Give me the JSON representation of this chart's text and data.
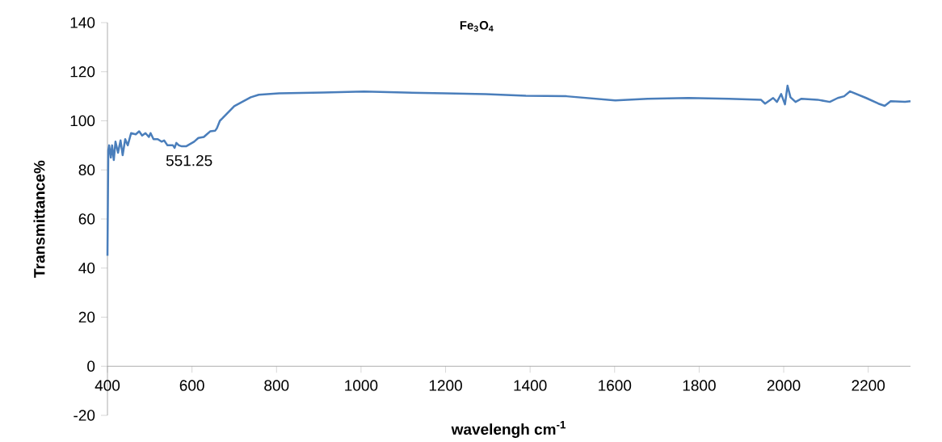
{
  "chart_data": {
    "type": "line",
    "title": "Fe$_{3}$O$_{4}$",
    "xlabel": "wavelengh cm$^{-1}$",
    "ylabel": "Transmittance%",
    "x": [
      400,
      402,
      404,
      408,
      411,
      415,
      419,
      425,
      431,
      436,
      442,
      448,
      456,
      467,
      475,
      482,
      490,
      498,
      502,
      509,
      519,
      528,
      534,
      542,
      548,
      555,
      559,
      563,
      569,
      576,
      586,
      595,
      605,
      615,
      628,
      643,
      655,
      659,
      666,
      672,
      700,
      739,
      758,
      806,
      911,
      1007,
      1103,
      1199,
      1295,
      1390,
      1486,
      1601,
      1678,
      1774,
      1870,
      1946,
      1956,
      1975,
      1984,
      1994,
      2003,
      2009,
      2016,
      2028,
      2042,
      2080,
      2109,
      2128,
      2143,
      2157,
      2195,
      2224,
      2239,
      2253,
      2287,
      2300
    ],
    "values": [
      45,
      88,
      90,
      85,
      90,
      84,
      91.5,
      87,
      92,
      86,
      92.5,
      90,
      95,
      94.5,
      95.7,
      94,
      95,
      93.4,
      95,
      92.5,
      92.5,
      91.5,
      92,
      90,
      90,
      90,
      89,
      91,
      90,
      89.6,
      89.6,
      90.5,
      91.5,
      93,
      93.4,
      95.7,
      96,
      97,
      100,
      101,
      106,
      109.6,
      110.6,
      111.2,
      111.5,
      111.9,
      111.5,
      111.2,
      110.9,
      110.2,
      110,
      108.3,
      109,
      109.3,
      109,
      108.6,
      107,
      109.3,
      107.7,
      110.9,
      106.7,
      114.3,
      109.6,
      107.7,
      109,
      108.6,
      107.7,
      109.3,
      110,
      112,
      109.3,
      107,
      106.1,
      108,
      107.7,
      108
    ],
    "color": "#4a7ebb",
    "marker": "none",
    "line_style": "solid",
    "xlim": [
      400,
      2300
    ],
    "xticks": [
      400,
      600,
      800,
      1000,
      1200,
      1400,
      1600,
      1800,
      2000,
      2200
    ],
    "ylim": [
      -20,
      140
    ],
    "yticks": [
      -20,
      0,
      20,
      40,
      60,
      80,
      100,
      120,
      140
    ],
    "annotations": [
      {
        "text": "551.25",
        "x": 551.25,
        "y": 89
      }
    ]
  }
}
